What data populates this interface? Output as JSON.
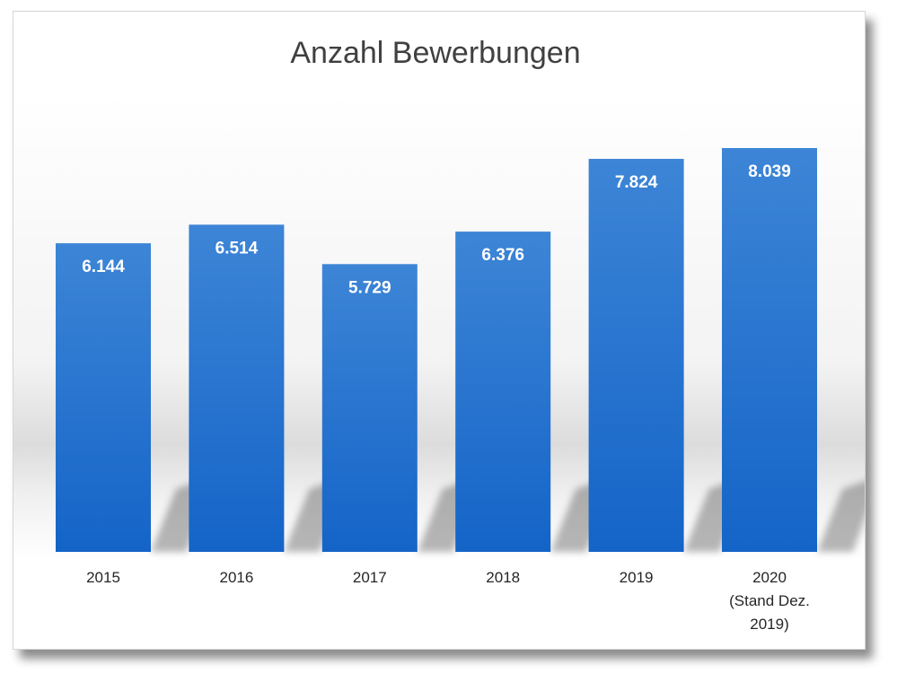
{
  "chart_data": {
    "type": "bar",
    "title": "Anzahl Bewerbungen",
    "categories": [
      [
        "2015"
      ],
      [
        "2016"
      ],
      [
        "2017"
      ],
      [
        "2018"
      ],
      [
        "2019"
      ],
      [
        "2020",
        "(Stand Dez.",
        "2019)"
      ]
    ],
    "values": [
      6144,
      6514,
      5729,
      6376,
      7824,
      8039
    ],
    "value_labels": [
      "6.144",
      "6.514",
      "5.729",
      "6.376",
      "7.824",
      "8.039"
    ],
    "ylim": [
      0,
      8039
    ],
    "grid": false,
    "legend": "none",
    "colors": {
      "bar_top": "#3d85d6",
      "bar_bottom": "#1464c8",
      "label": "#ffffff"
    }
  }
}
